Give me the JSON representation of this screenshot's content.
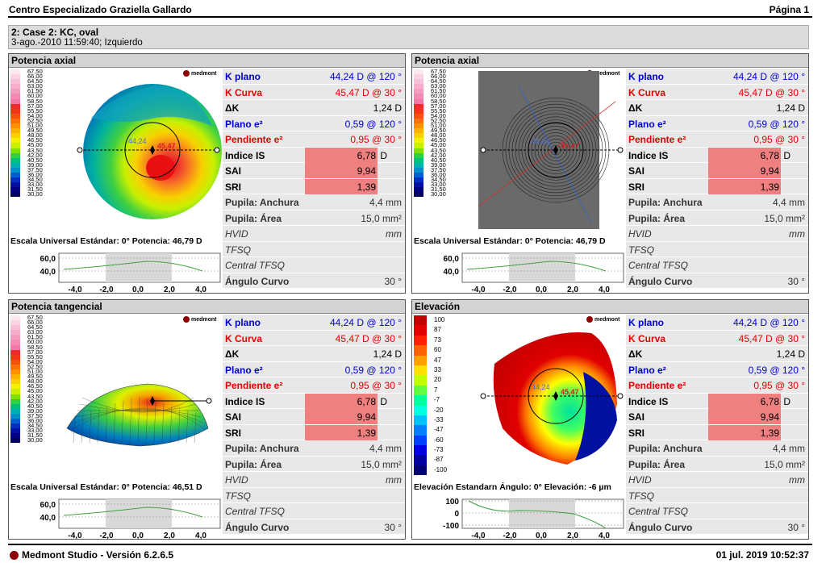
{
  "header": {
    "title": "Centro Especializado Graziella Gallardo",
    "page": "Página 1"
  },
  "case": {
    "line1": "2: Case 2: KC, oval",
    "line2": "3-ago.-2010   11:59:40; Izquierdo"
  },
  "logo": "medmont",
  "curvature_legend": [
    "67,50",
    "66,00",
    "64,50",
    "63,00",
    "61,50",
    "60,00",
    "58,50",
    "57,00",
    "55,50",
    "54,00",
    "52,50",
    "51,00",
    "49,50",
    "48,00",
    "46,50",
    "45,00",
    "43,50",
    "42,00",
    "40,50",
    "39,00",
    "37,50",
    "36,00",
    "34,50",
    "33,00",
    "31,50",
    "30,00"
  ],
  "elevation_legend": [
    "100",
    "87",
    "73",
    "60",
    "47",
    "33",
    "20",
    "7",
    "-7",
    "-20",
    "-33",
    "-47",
    "-60",
    "-73",
    "-87",
    "-100"
  ],
  "colors": {
    "curvature": [
      "#fde8f0",
      "#fad4e4",
      "#f8c0d8",
      "#f6aecc",
      "#f49cc0",
      "#f28ab4",
      "#f078a8",
      "#ee2a2a",
      "#f03818",
      "#f45010",
      "#f87008",
      "#fb9000",
      "#fcb000",
      "#fcd000",
      "#f0f000",
      "#c8f000",
      "#80e000",
      "#30d040",
      "#00c080",
      "#00b0b0",
      "#0090c8",
      "#0060d0",
      "#0030c0",
      "#0010a0",
      "#000080",
      "#000060"
    ],
    "elevation": [
      "#c00000",
      "#e00000",
      "#ff2000",
      "#ff6000",
      "#ffa000",
      "#ffe000",
      "#c0ff00",
      "#60ff40",
      "#00ffa0",
      "#00ffe0",
      "#00c0ff",
      "#0080ff",
      "#0040ff",
      "#0000e0",
      "#0000a0",
      "#000070"
    ]
  },
  "common": {
    "k_plano_label": "K plano",
    "k_plano": "44,24 D @ 120 °",
    "k_curva_label": "K Curva",
    "k_curva": "45,47 D @  30 °",
    "dk_label": "ΔK",
    "dk": "1,24 D",
    "plano_e_label": "Plano e²",
    "plano_e": "0,59 @ 120 °",
    "pend_e_label": "Pendiente e²",
    "pend_e": "0,95 @  30 °",
    "is_label": "Indice IS",
    "is": "6,78",
    "is_unit": "D",
    "sai_label": "SAI",
    "sai": "9,94",
    "sri_label": "SRI",
    "sri": "1,39",
    "pup_w_label": "Pupila: Anchura",
    "pup_w": "4,4 mm",
    "pup_a_label": "Pupila: Área",
    "pup_a": "15,0 mm²",
    "hvid_label": "HVID",
    "hvid": "mm",
    "tfsq_label": "TFSQ",
    "ctfsq_label": "Central TFSQ",
    "ang_label": "Ángulo Curvo",
    "ang": "30 °"
  },
  "panels": [
    {
      "title": "Potencia axial",
      "scale": "Escala Universal Estándar: 0° Potencia: 46,79 D",
      "yticks": [
        "60,0",
        "40,0"
      ],
      "xticks": [
        "-4,0",
        "-2,0",
        "0,0",
        "2,0",
        "4,0"
      ],
      "k1": "44,24",
      "k2": "45,47"
    },
    {
      "title": "Potencia axial",
      "scale": "Escala Universal Estándar: 0° Potencia: 46,79 D",
      "yticks": [
        "60,0",
        "40,0"
      ],
      "xticks": [
        "-4,0",
        "-2,0",
        "0,0",
        "2,0",
        "4,0"
      ],
      "k1": "44,24",
      "k2": "45,47"
    },
    {
      "title": "Potencia tangencial",
      "scale": "Escala Universal Estándar: 0° Potencia: 46,51 D",
      "yticks": [
        "60,0",
        "40,0"
      ],
      "xticks": [
        "-4,0",
        "-2,0",
        "0,0",
        "2,0",
        "4,0"
      ]
    },
    {
      "title": "Elevación",
      "scale": "Elevación Estandarn Ángulo: 0° Elevación: -6 µm",
      "yticks": [
        "100",
        "0",
        "-100"
      ],
      "xticks": [
        "-4,0",
        "-2,0",
        "0,0",
        "2,0",
        "4,0"
      ],
      "k1": "44,24",
      "k2": "45,47"
    }
  ],
  "footer": {
    "app": "Medmont Studio - Versión 6.2.6.5",
    "date": "01 jul. 2019 10:52:37"
  }
}
